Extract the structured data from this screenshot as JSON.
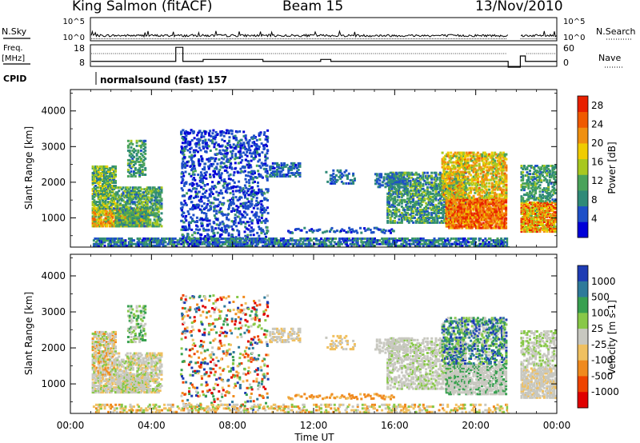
{
  "header": {
    "station": "King Salmon (fitACF)",
    "beam": "Beam 15",
    "date": "13/Nov/2010"
  },
  "colors": {
    "power_scale": [
      "#0000d8",
      "#1e50c8",
      "#2f8a78",
      "#4aa35a",
      "#a8c820",
      "#f0cc00",
      "#f09010",
      "#f05a00",
      "#e82000"
    ],
    "velocity_scale": [
      "#1e3cb4",
      "#2e7a9a",
      "#38a050",
      "#88c848",
      "#c8c8c0",
      "#f0c060",
      "#f08a1e",
      "#ee4400",
      "#e00000"
    ],
    "noise_white": "#ffffff"
  },
  "chart_data": [
    {
      "name": "status-panels",
      "type": "line",
      "rows": [
        {
          "left_label": "N.Sky",
          "right_label": "N.Search",
          "left_ticks": [
            "10^5",
            "10^0"
          ],
          "right_ticks": [
            "10^5",
            "10^0"
          ]
        },
        {
          "left_label": "Freq.",
          "left_unit": "[MHz]",
          "right_label": "Nave",
          "left_ticks": [
            "18",
            "8"
          ],
          "right_ticks": [
            "60",
            "0"
          ]
        },
        {
          "left_label": "CPID",
          "text": "normalsound (fast) 157"
        }
      ],
      "freq_steps": [
        {
          "t": 1.03,
          "mhz": 10.2
        },
        {
          "t": 5.2,
          "mhz": 17.5
        },
        {
          "t": 5.55,
          "mhz": 10.2
        },
        {
          "t": 6.55,
          "mhz": 11.2
        },
        {
          "t": 9.5,
          "mhz": 10.2
        },
        {
          "t": 12.35,
          "mhz": 11.2
        },
        {
          "t": 12.85,
          "mhz": 10.2
        },
        {
          "t": 21.6,
          "mhz": 0
        },
        {
          "t": 22.2,
          "mhz": 13.0
        },
        {
          "t": 22.45,
          "mhz": 10.2
        },
        {
          "t": 24.0,
          "mhz": 10.2
        }
      ]
    },
    {
      "name": "power-panel",
      "type": "heatmap",
      "x_ticks": [
        "00:00",
        "04:00",
        "08:00",
        "12:00",
        "16:00",
        "20:00",
        "00:00"
      ],
      "xlim": [
        0,
        24
      ],
      "y_ticks": [
        "1000",
        "2000",
        "3000",
        "4000"
      ],
      "ylim": [
        180,
        4600
      ],
      "ylabel": "Slant Range [km]",
      "colorbar_label": "Power [dB]",
      "colorbar_ticks": [
        "4",
        "8",
        "12",
        "16",
        "20",
        "24",
        "28"
      ],
      "colorbar_range": [
        0,
        30
      ]
    },
    {
      "name": "velocity-panel",
      "type": "heatmap",
      "x_ticks": [
        "00:00",
        "04:00",
        "08:00",
        "12:00",
        "16:00",
        "20:00",
        "00:00"
      ],
      "xlim": [
        0,
        24
      ],
      "xlabel": "Time UT",
      "y_ticks": [
        "1000",
        "2000",
        "3000",
        "4000"
      ],
      "ylim": [
        180,
        4600
      ],
      "ylabel": "Slant Range [km]",
      "colorbar_label": "Velocity [m s-1]",
      "colorbar_ticks": [
        "1000",
        "500",
        "100",
        "25",
        "-25",
        "-100",
        "-500",
        "-1000"
      ]
    }
  ]
}
